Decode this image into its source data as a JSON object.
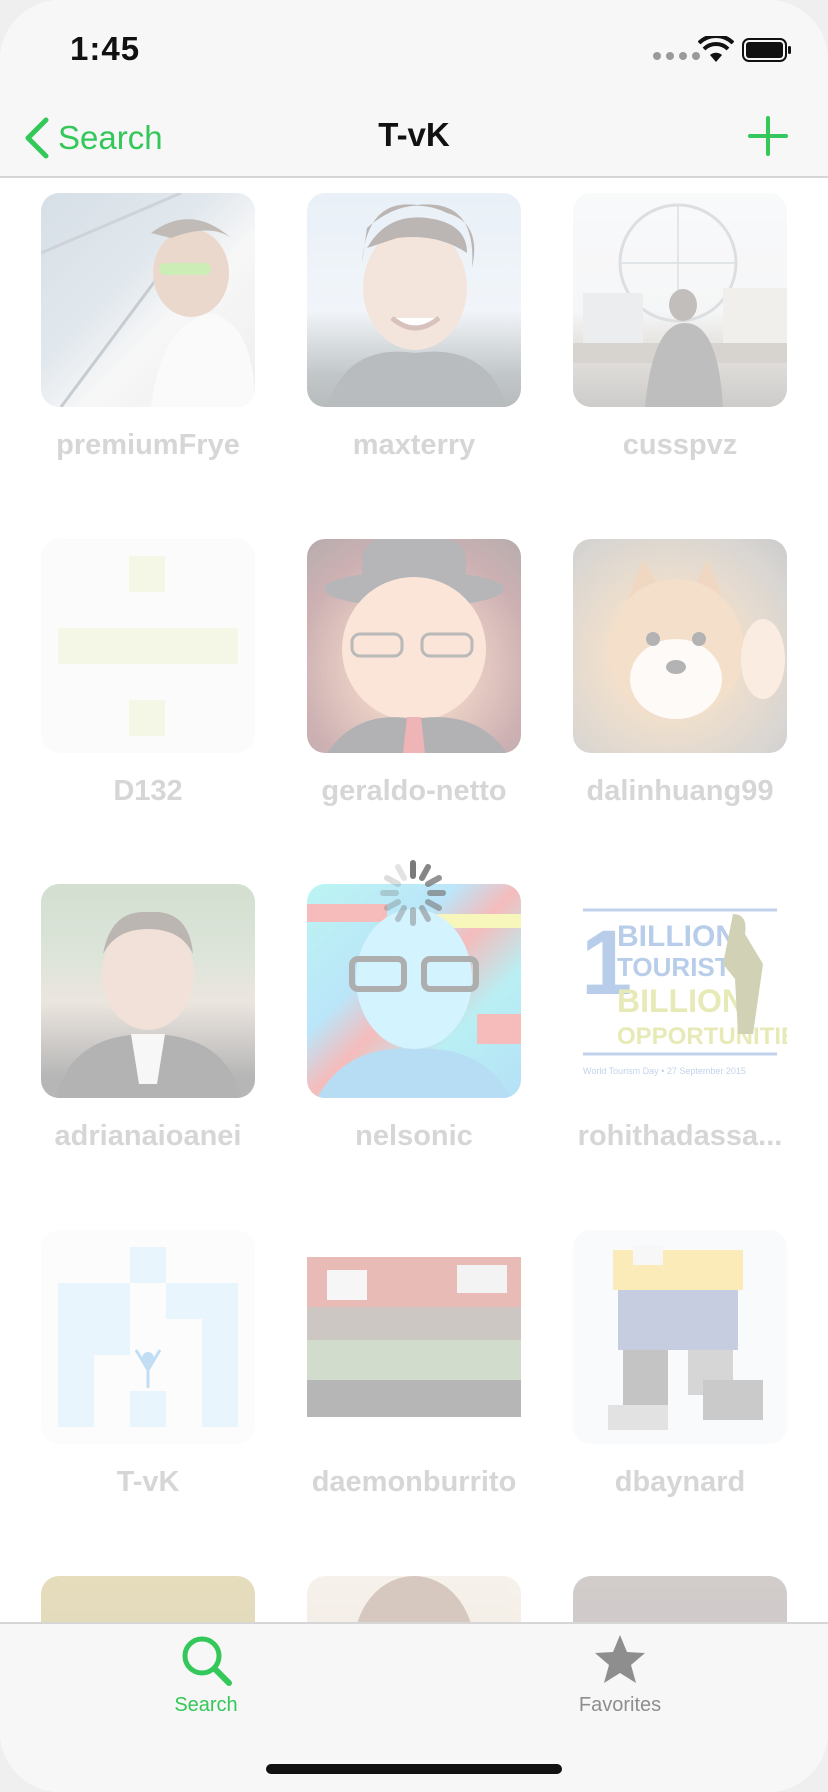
{
  "status_bar": {
    "time": "1:45"
  },
  "nav": {
    "back_label": "Search",
    "title": "T-vK"
  },
  "grid": {
    "users": [
      {
        "name": "premiumFrye"
      },
      {
        "name": "maxterry"
      },
      {
        "name": "cusspvz"
      },
      {
        "name": "D132"
      },
      {
        "name": "geraldo-netto"
      },
      {
        "name": "dalinhuang99"
      },
      {
        "name": "adrianaioanei"
      },
      {
        "name": "nelsonic"
      },
      {
        "name": "rohithadassa..."
      },
      {
        "name": "T-vK"
      },
      {
        "name": "daemonburrito"
      },
      {
        "name": "dbaynard"
      }
    ],
    "rohit_avatar_text": [
      "1",
      "BILLION",
      "TOURISTS",
      "BILLION",
      "OPPORTUNITIES",
      "World Tourism Day • 27 September 2015"
    ]
  },
  "tab_bar": {
    "tabs": [
      {
        "label": "Search",
        "icon": "search-icon",
        "selected": true
      },
      {
        "label": "Favorites",
        "icon": "star-icon",
        "selected": false
      }
    ]
  },
  "colors": {
    "accent": "#34c759",
    "inactive": "#8e8e8e",
    "username": "#c9c9c9"
  }
}
